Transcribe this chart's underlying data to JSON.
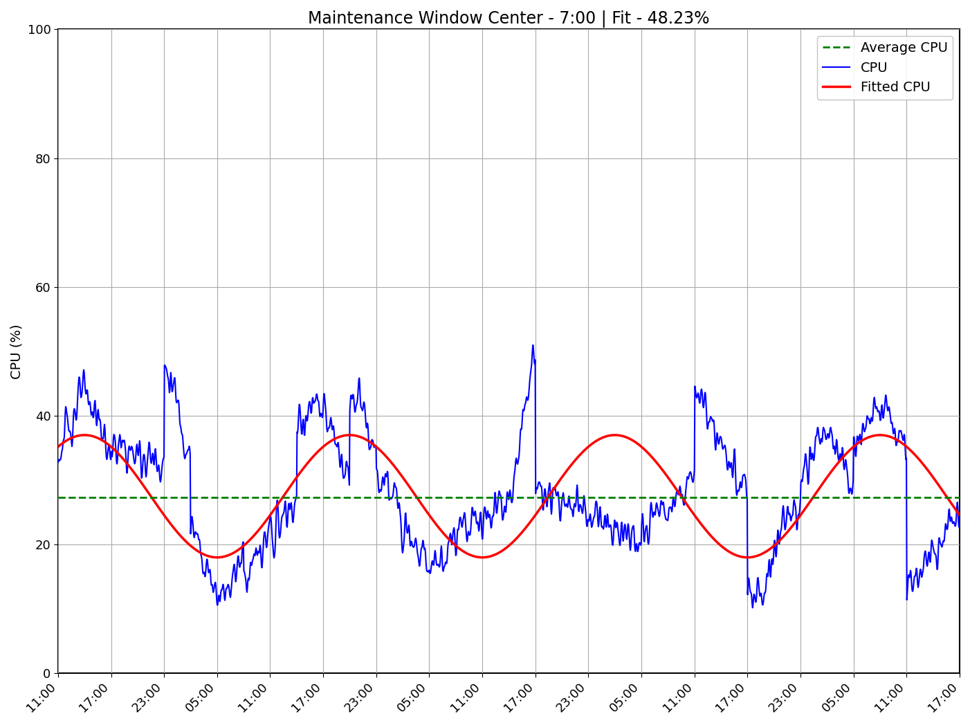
{
  "title": "Maintenance Window Center - 7:00 | Fit - 48.23%",
  "ylabel": "CPU (%)",
  "ylim": [
    0,
    100
  ],
  "yticks": [
    0,
    20,
    40,
    60,
    80,
    100
  ],
  "x_tick_labels": [
    "11:00",
    "17:00",
    "23:00",
    "05:00",
    "11:00",
    "17:00",
    "23:00",
    "05:00",
    "11:00",
    "17:00",
    "23:00",
    "05:00",
    "11:00",
    "17:00",
    "23:00",
    "05:00",
    "11:00",
    "17:00"
  ],
  "avg_cpu": 27.3,
  "avg_color": "#008000",
  "cpu_color": "#0000ff",
  "fit_color": "#ff0000",
  "title_fontsize": 17,
  "axis_fontsize": 14,
  "tick_fontsize": 13,
  "legend_fontsize": 14,
  "fit_mean": 27.5,
  "fit_amp": 9.5,
  "fit_period": 30.0,
  "fit_phase": 9.5
}
